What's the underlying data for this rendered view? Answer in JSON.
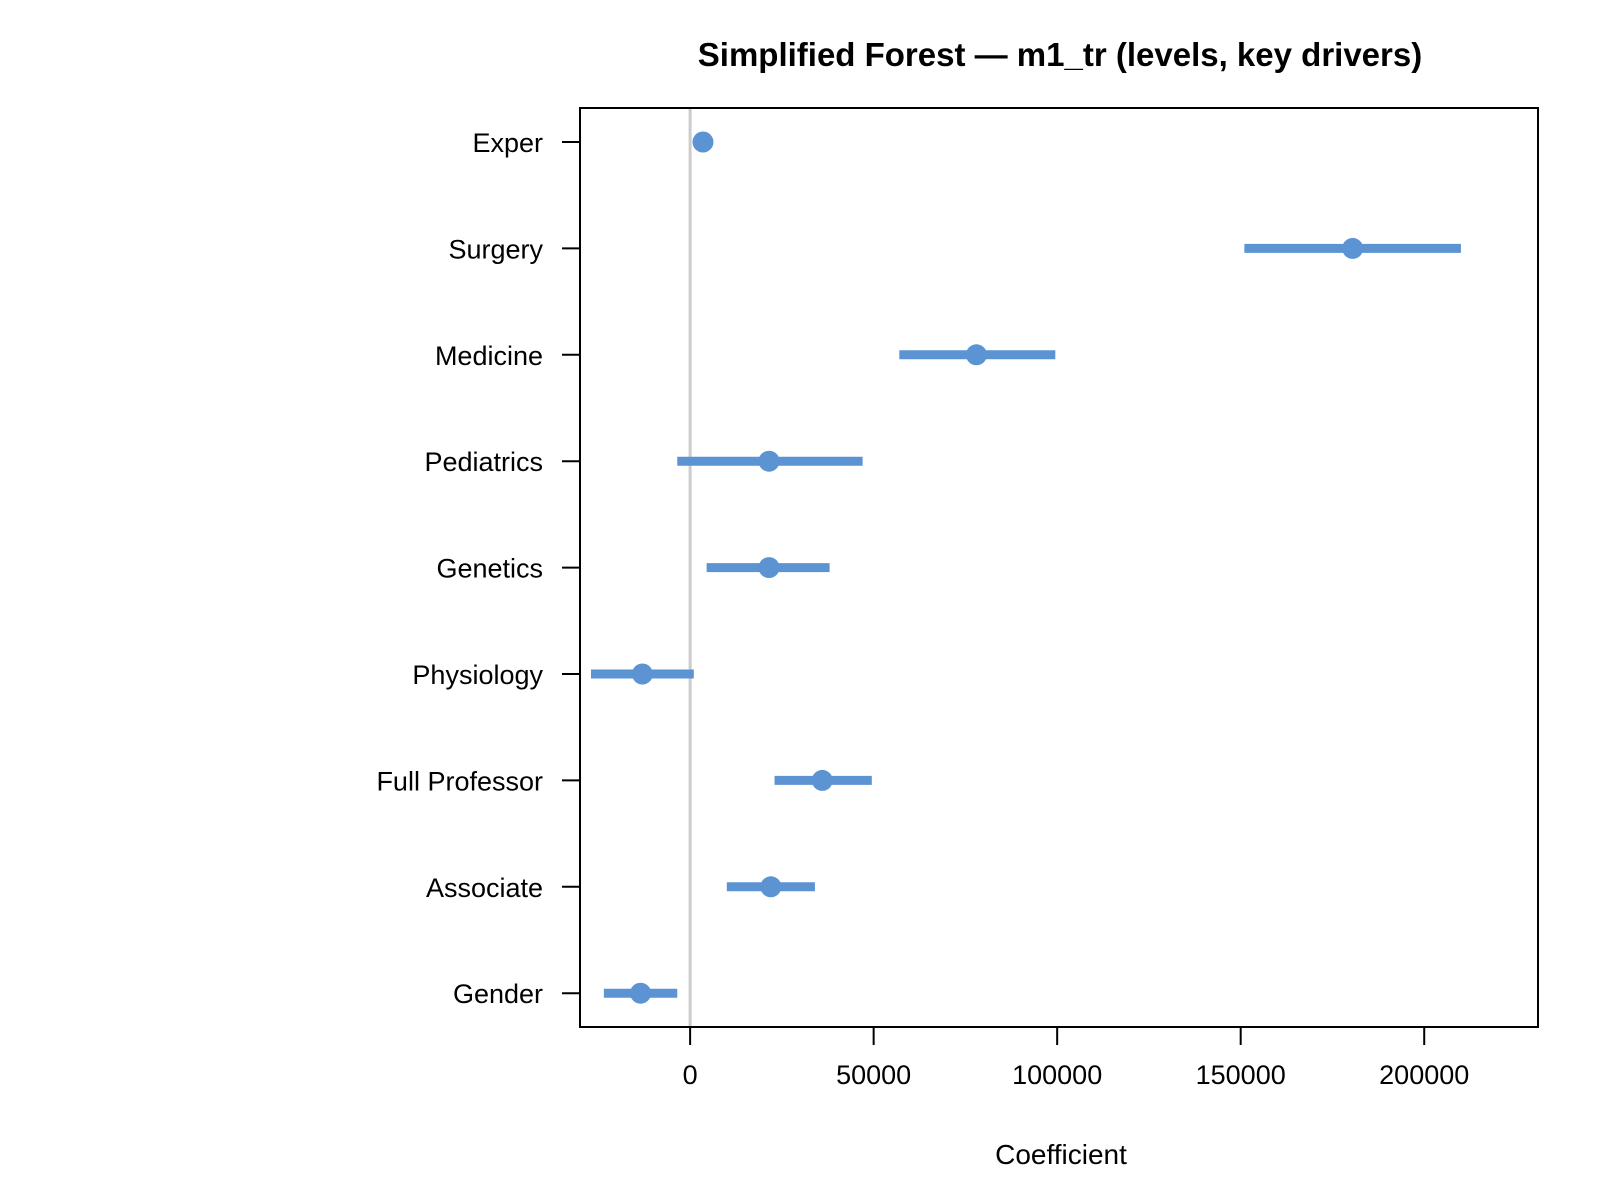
{
  "chart_data": {
    "type": "forest",
    "title": "Simplified Forest — m1_tr (levels, key drivers)",
    "xlabel": "Coefficient",
    "ylabel": "",
    "xlim": [
      -30000,
      231000
    ],
    "xticks": [
      0,
      50000,
      100000,
      150000,
      200000
    ],
    "xtick_labels": [
      "0",
      "50000",
      "100000",
      "150000",
      "200000"
    ],
    "reference_line": 0,
    "grid": false,
    "legend": "none",
    "colors": {
      "point": "#5b93d3",
      "reference": "#cccccc",
      "frame": "#000000"
    },
    "series": [
      {
        "label": "Exper",
        "estimate": 3500,
        "lower": 2800,
        "upper": 4200
      },
      {
        "label": "Surgery",
        "estimate": 180500,
        "lower": 151000,
        "upper": 210000
      },
      {
        "label": "Medicine",
        "estimate": 78000,
        "lower": 57000,
        "upper": 99500
      },
      {
        "label": "Pediatrics",
        "estimate": 21500,
        "lower": -3500,
        "upper": 47000
      },
      {
        "label": "Genetics",
        "estimate": 21500,
        "lower": 4500,
        "upper": 38000
      },
      {
        "label": "Physiology",
        "estimate": -13000,
        "lower": -27000,
        "upper": 1000
      },
      {
        "label": "Full Professor",
        "estimate": 36000,
        "lower": 23000,
        "upper": 49500
      },
      {
        "label": "Associate",
        "estimate": 22000,
        "lower": 10000,
        "upper": 34000
      },
      {
        "label": "Gender",
        "estimate": -13500,
        "lower": -23500,
        "upper": -3500
      }
    ]
  }
}
